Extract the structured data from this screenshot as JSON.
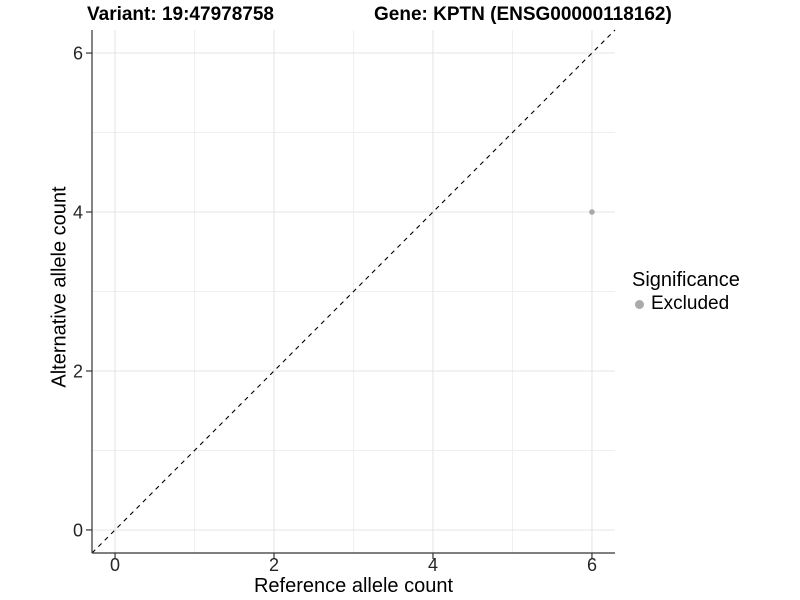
{
  "chart_data": {
    "type": "scatter",
    "title_left": "Variant: 19:47978758",
    "title_right": "Gene: KPTN (ENSG00000118162)",
    "xlabel": "Reference allele count",
    "ylabel": "Alternative allele count",
    "xlim": [
      -0.29,
      6.29
    ],
    "ylim": [
      -0.29,
      6.29
    ],
    "x_major_ticks": [
      0,
      2,
      4,
      6
    ],
    "y_major_ticks": [
      0,
      2,
      4,
      6
    ],
    "x_minor_ticks": [
      1,
      3,
      5
    ],
    "y_minor_ticks": [
      1,
      3,
      5
    ],
    "grid": true,
    "identity_line": {
      "style": "dashed",
      "from": [
        -0.29,
        -0.29
      ],
      "to": [
        6.29,
        6.29
      ],
      "color": "#000000"
    },
    "series": [
      {
        "name": "Excluded",
        "color": "#aaaaaa",
        "points": [
          {
            "x": 6,
            "y": 4
          }
        ]
      }
    ],
    "legend": {
      "title": "Significance",
      "position": "right",
      "items": [
        {
          "label": "Excluded",
          "color": "#aaaaaa"
        }
      ]
    },
    "colors": {
      "grid_major": "#e4e4e4",
      "grid_minor": "#efefef",
      "axis_line": "#333333",
      "tick_mark": "#333333",
      "tick_text": "#262626",
      "title_text": "#000000"
    }
  }
}
